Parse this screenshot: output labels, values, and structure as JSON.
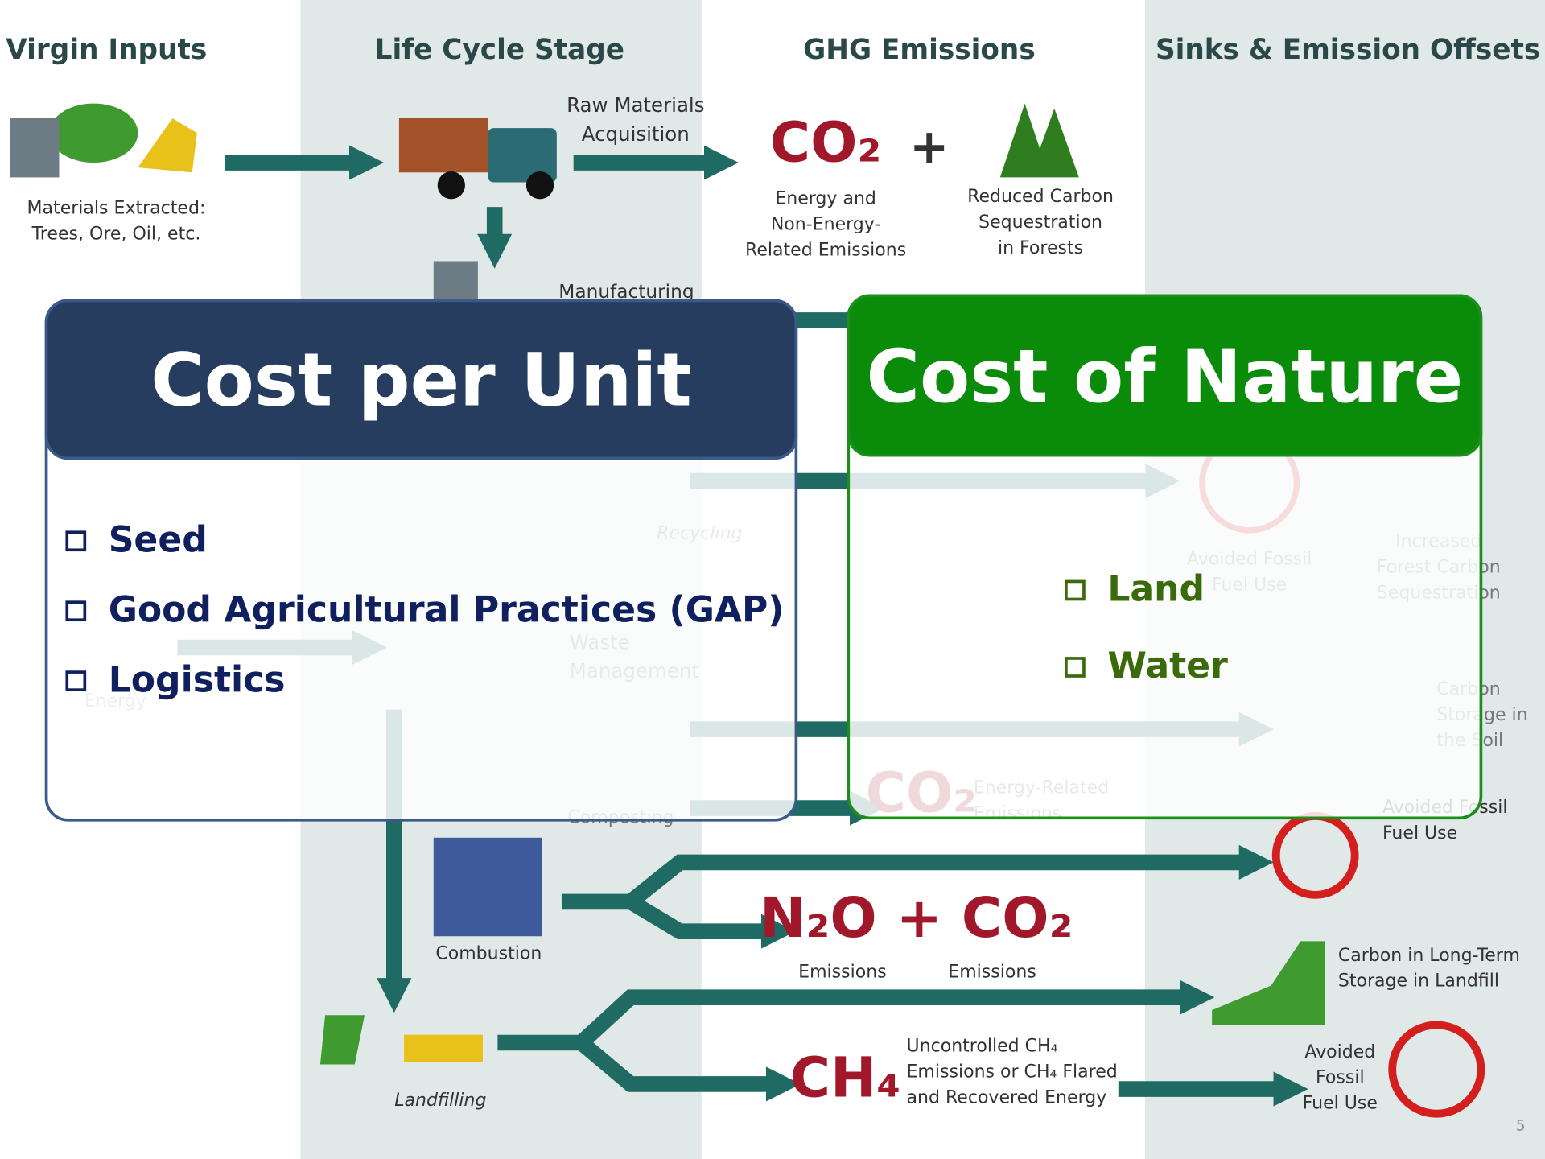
{
  "headers": [
    "Virgin Inputs",
    "Life Cycle Stage",
    "GHG Emissions",
    "Sinks & Emission Offsets"
  ],
  "diagram_labels": [
    [
      "Materials Extracted:",
      "Trees, Ore, Oil, etc."
    ],
    [
      "Raw Materials",
      "Acquisition"
    ],
    [
      "CO₂"
    ],
    [
      "+"
    ],
    [
      "Energy and",
      "Non-Energy-",
      "Related Emissions"
    ],
    [
      "Reduced Carbon",
      "Sequestration",
      "in Forests"
    ],
    [
      "Manufacturing"
    ],
    [
      "Recycling"
    ],
    [
      "Avoided Fossil",
      "Fuel Use"
    ],
    [
      "Increased",
      "Forest Carbon",
      "Sequestration"
    ],
    [
      "Waste",
      "Management"
    ],
    [
      "Carbon",
      "Storage in",
      "the Soil"
    ],
    [
      "CO₂"
    ],
    [
      "Energy-Related",
      "Emissions"
    ],
    [
      "Avoided Fossil",
      "Fuel Use"
    ],
    [
      "Composting"
    ],
    [
      "Combustion"
    ],
    [
      "N₂O + CO₂"
    ],
    [
      "Emissions"
    ],
    [
      "Emissions"
    ],
    [
      "Carbon in Long-Term",
      "Storage in Landfill"
    ],
    [
      "Landfilling"
    ],
    [
      "CH₄"
    ],
    [
      "Uncontrolled CH₄",
      "Emissions or CH₄ Flared",
      "and Recovered Energy"
    ],
    [
      "Avoided",
      "Fossil",
      "Fuel Use"
    ],
    [
      "Energy"
    ]
  ],
  "panels": [
    {
      "title": "Cost per Unit",
      "items": [
        "Seed",
        "Good Agricultural Practices (GAP)",
        "Logistics"
      ]
    },
    {
      "title": "Cost of Nature",
      "items": [
        "Land",
        "Water"
      ]
    }
  ],
  "page_number": "5"
}
